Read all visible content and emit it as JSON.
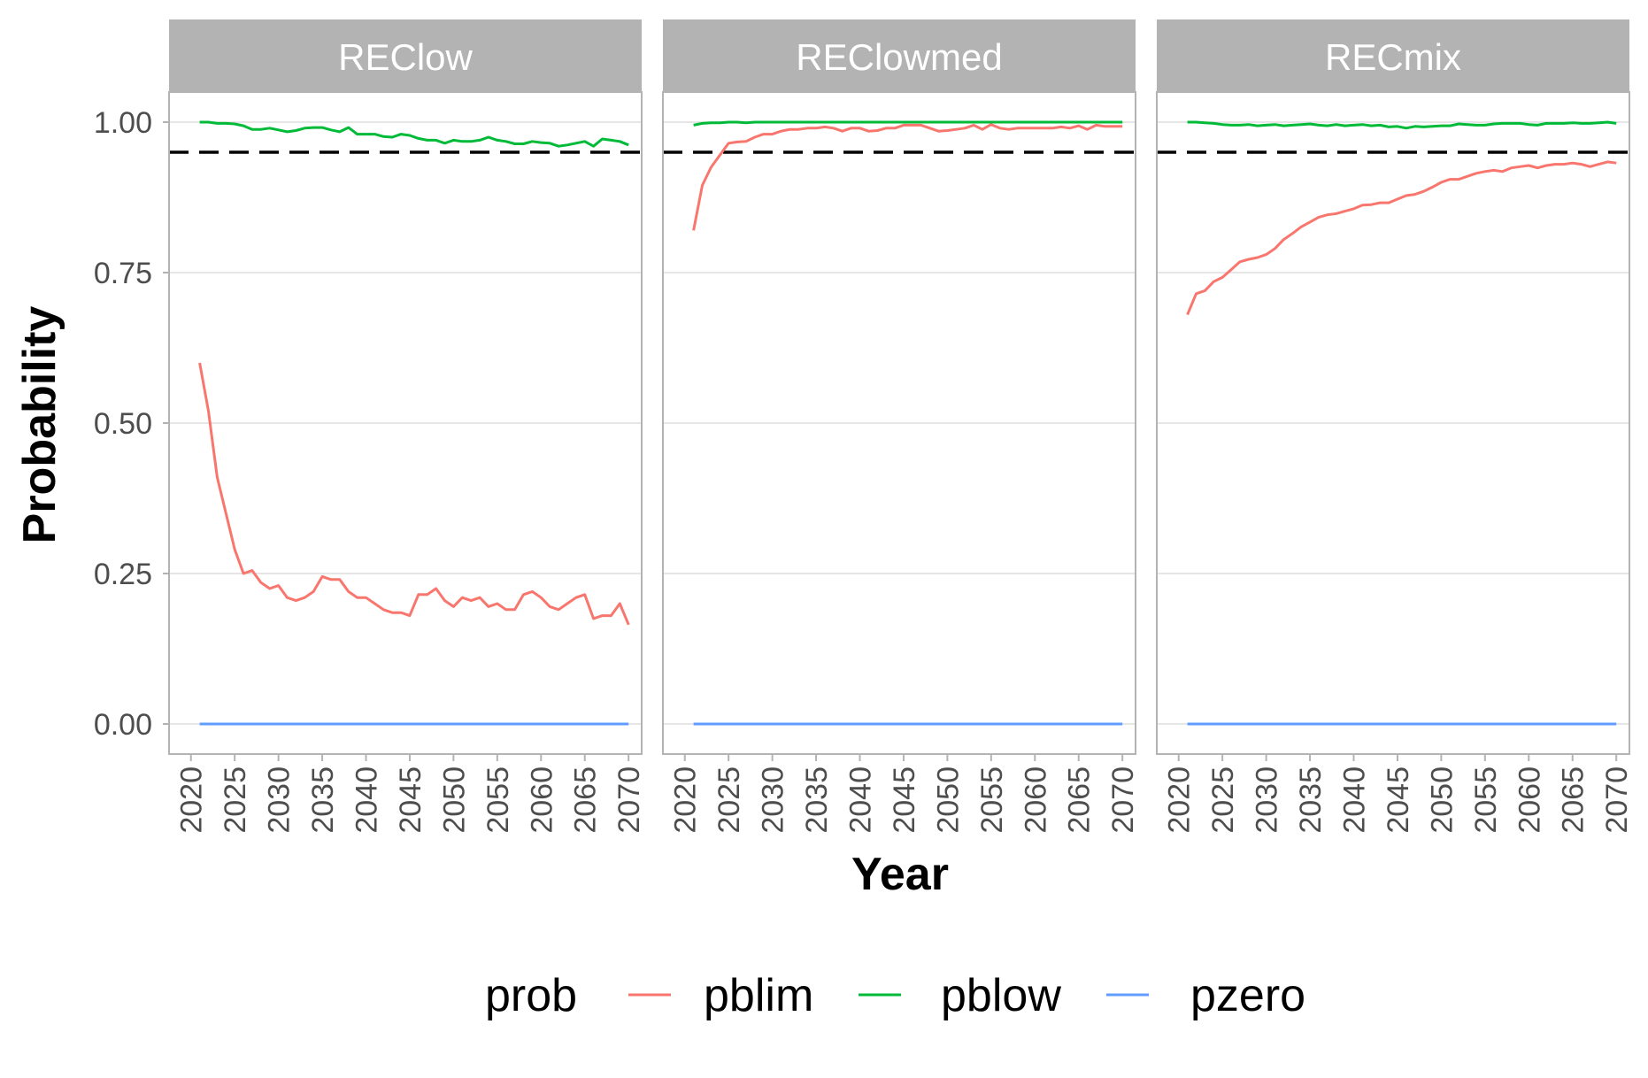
{
  "chart_data": {
    "type": "line",
    "xlabel": "Year",
    "ylabel": "Probability",
    "ylim": [
      -0.05,
      1.05
    ],
    "xlim": [
      2017.5,
      2071.5
    ],
    "yticks": [
      0,
      0.25,
      0.5,
      0.75,
      1
    ],
    "ytick_labels": [
      "0.00",
      "0.25",
      "0.50",
      "0.75",
      "1.00"
    ],
    "xticks": [
      2020,
      2025,
      2030,
      2035,
      2040,
      2045,
      2050,
      2055,
      2060,
      2065,
      2070
    ],
    "xtick_labels": [
      "2020",
      "2025",
      "2030",
      "2035",
      "2040",
      "2045",
      "2050",
      "2055",
      "2060",
      "2065",
      "2070"
    ],
    "reference_line": {
      "y": 0.95,
      "style": "dashed",
      "color": "#000000"
    },
    "grid": true,
    "legend": {
      "title": "prob",
      "position": "bottom",
      "entries": [
        {
          "name": "pblim",
          "color": "#F8766D"
        },
        {
          "name": "pblow",
          "color": "#00BA38"
        },
        {
          "name": "pzero",
          "color": "#619CFF"
        }
      ]
    },
    "facets": [
      {
        "title": "REClow",
        "x_start": 2021,
        "series": [
          {
            "name": "pblim",
            "color": "#F8766D",
            "values": [
              0.6,
              0.52,
              0.41,
              0.35,
              0.29,
              0.25,
              0.255,
              0.235,
              0.225,
              0.23,
              0.21,
              0.205,
              0.21,
              0.22,
              0.245,
              0.24,
              0.24,
              0.22,
              0.21,
              0.21,
              0.2,
              0.19,
              0.185,
              0.185,
              0.18,
              0.215,
              0.215,
              0.225,
              0.205,
              0.195,
              0.21,
              0.205,
              0.21,
              0.195,
              0.2,
              0.19,
              0.19,
              0.215,
              0.22,
              0.21,
              0.195,
              0.19,
              0.2,
              0.21,
              0.215,
              0.175,
              0.18,
              0.18,
              0.2,
              0.165
            ]
          },
          {
            "name": "pblow",
            "color": "#00BA38",
            "values": [
              1.0,
              1.0,
              0.998,
              0.998,
              0.997,
              0.994,
              0.988,
              0.988,
              0.99,
              0.987,
              0.984,
              0.986,
              0.99,
              0.991,
              0.991,
              0.987,
              0.984,
              0.991,
              0.98,
              0.98,
              0.98,
              0.976,
              0.975,
              0.98,
              0.978,
              0.973,
              0.97,
              0.97,
              0.965,
              0.97,
              0.968,
              0.968,
              0.97,
              0.975,
              0.97,
              0.968,
              0.964,
              0.964,
              0.968,
              0.966,
              0.965,
              0.96,
              0.962,
              0.965,
              0.968,
              0.96,
              0.972,
              0.97,
              0.968,
              0.962
            ]
          },
          {
            "name": "pzero",
            "color": "#619CFF",
            "values": [
              0,
              0,
              0,
              0,
              0,
              0,
              0,
              0,
              0,
              0,
              0,
              0,
              0,
              0,
              0,
              0,
              0,
              0,
              0,
              0,
              0,
              0,
              0,
              0,
              0,
              0,
              0,
              0,
              0,
              0,
              0,
              0,
              0,
              0,
              0,
              0,
              0,
              0,
              0,
              0,
              0,
              0,
              0,
              0,
              0,
              0,
              0,
              0,
              0,
              0
            ]
          }
        ]
      },
      {
        "title": "REClowmed",
        "x_start": 2021,
        "series": [
          {
            "name": "pblim",
            "color": "#F8766D",
            "values": [
              0.82,
              0.895,
              0.925,
              0.945,
              0.965,
              0.967,
              0.968,
              0.975,
              0.98,
              0.98,
              0.985,
              0.988,
              0.988,
              0.99,
              0.99,
              0.992,
              0.99,
              0.985,
              0.99,
              0.99,
              0.985,
              0.986,
              0.99,
              0.99,
              0.995,
              0.995,
              0.995,
              0.99,
              0.985,
              0.986,
              0.988,
              0.99,
              0.995,
              0.988,
              0.996,
              0.99,
              0.988,
              0.99,
              0.99,
              0.99,
              0.99,
              0.99,
              0.992,
              0.99,
              0.994,
              0.988,
              0.995,
              0.993,
              0.993,
              0.993
            ]
          },
          {
            "name": "pblow",
            "color": "#00BA38",
            "values": [
              0.995,
              0.998,
              0.999,
              0.999,
              1.0,
              1.0,
              0.999,
              1.0,
              1.0,
              1.0,
              1.0,
              1.0,
              1.0,
              1.0,
              1.0,
              1.0,
              1.0,
              1.0,
              1.0,
              1.0,
              1.0,
              1.0,
              1.0,
              1.0,
              1.0,
              1.0,
              1.0,
              1.0,
              1.0,
              1.0,
              1.0,
              1.0,
              1.0,
              1.0,
              1.0,
              1.0,
              1.0,
              1.0,
              1.0,
              1.0,
              1.0,
              1.0,
              1.0,
              1.0,
              1.0,
              1.0,
              1.0,
              1.0,
              1.0,
              1.0
            ]
          },
          {
            "name": "pzero",
            "color": "#619CFF",
            "values": [
              0,
              0,
              0,
              0,
              0,
              0,
              0,
              0,
              0,
              0,
              0,
              0,
              0,
              0,
              0,
              0,
              0,
              0,
              0,
              0,
              0,
              0,
              0,
              0,
              0,
              0,
              0,
              0,
              0,
              0,
              0,
              0,
              0,
              0,
              0,
              0,
              0,
              0,
              0,
              0,
              0,
              0,
              0,
              0,
              0,
              0,
              0,
              0,
              0,
              0
            ]
          }
        ]
      },
      {
        "title": "RECmix",
        "x_start": 2021,
        "series": [
          {
            "name": "pblim",
            "color": "#F8766D",
            "values": [
              0.68,
              0.715,
              0.72,
              0.735,
              0.742,
              0.755,
              0.768,
              0.772,
              0.775,
              0.78,
              0.79,
              0.805,
              0.815,
              0.826,
              0.834,
              0.842,
              0.846,
              0.848,
              0.852,
              0.856,
              0.862,
              0.863,
              0.866,
              0.866,
              0.872,
              0.878,
              0.88,
              0.885,
              0.892,
              0.9,
              0.905,
              0.905,
              0.91,
              0.915,
              0.918,
              0.92,
              0.918,
              0.924,
              0.926,
              0.928,
              0.924,
              0.928,
              0.93,
              0.93,
              0.932,
              0.93,
              0.926,
              0.93,
              0.934,
              0.932
            ]
          },
          {
            "name": "pblow",
            "color": "#00BA38",
            "values": [
              1.0,
              1.0,
              0.999,
              0.998,
              0.996,
              0.995,
              0.995,
              0.996,
              0.994,
              0.995,
              0.996,
              0.994,
              0.995,
              0.996,
              0.997,
              0.995,
              0.994,
              0.996,
              0.994,
              0.995,
              0.996,
              0.994,
              0.995,
              0.992,
              0.993,
              0.99,
              0.993,
              0.992,
              0.993,
              0.994,
              0.994,
              0.997,
              0.996,
              0.995,
              0.995,
              0.997,
              0.998,
              0.998,
              0.998,
              0.996,
              0.995,
              0.998,
              0.998,
              0.998,
              0.999,
              0.998,
              0.998,
              0.999,
              1.0,
              0.998
            ]
          },
          {
            "name": "pzero",
            "color": "#619CFF",
            "values": [
              0,
              0,
              0,
              0,
              0,
              0,
              0,
              0,
              0,
              0,
              0,
              0,
              0,
              0,
              0,
              0,
              0,
              0,
              0,
              0,
              0,
              0,
              0,
              0,
              0,
              0,
              0,
              0,
              0,
              0,
              0,
              0,
              0,
              0,
              0,
              0,
              0,
              0,
              0,
              0,
              0,
              0,
              0,
              0,
              0,
              0,
              0,
              0,
              0,
              0
            ]
          }
        ]
      }
    ]
  }
}
